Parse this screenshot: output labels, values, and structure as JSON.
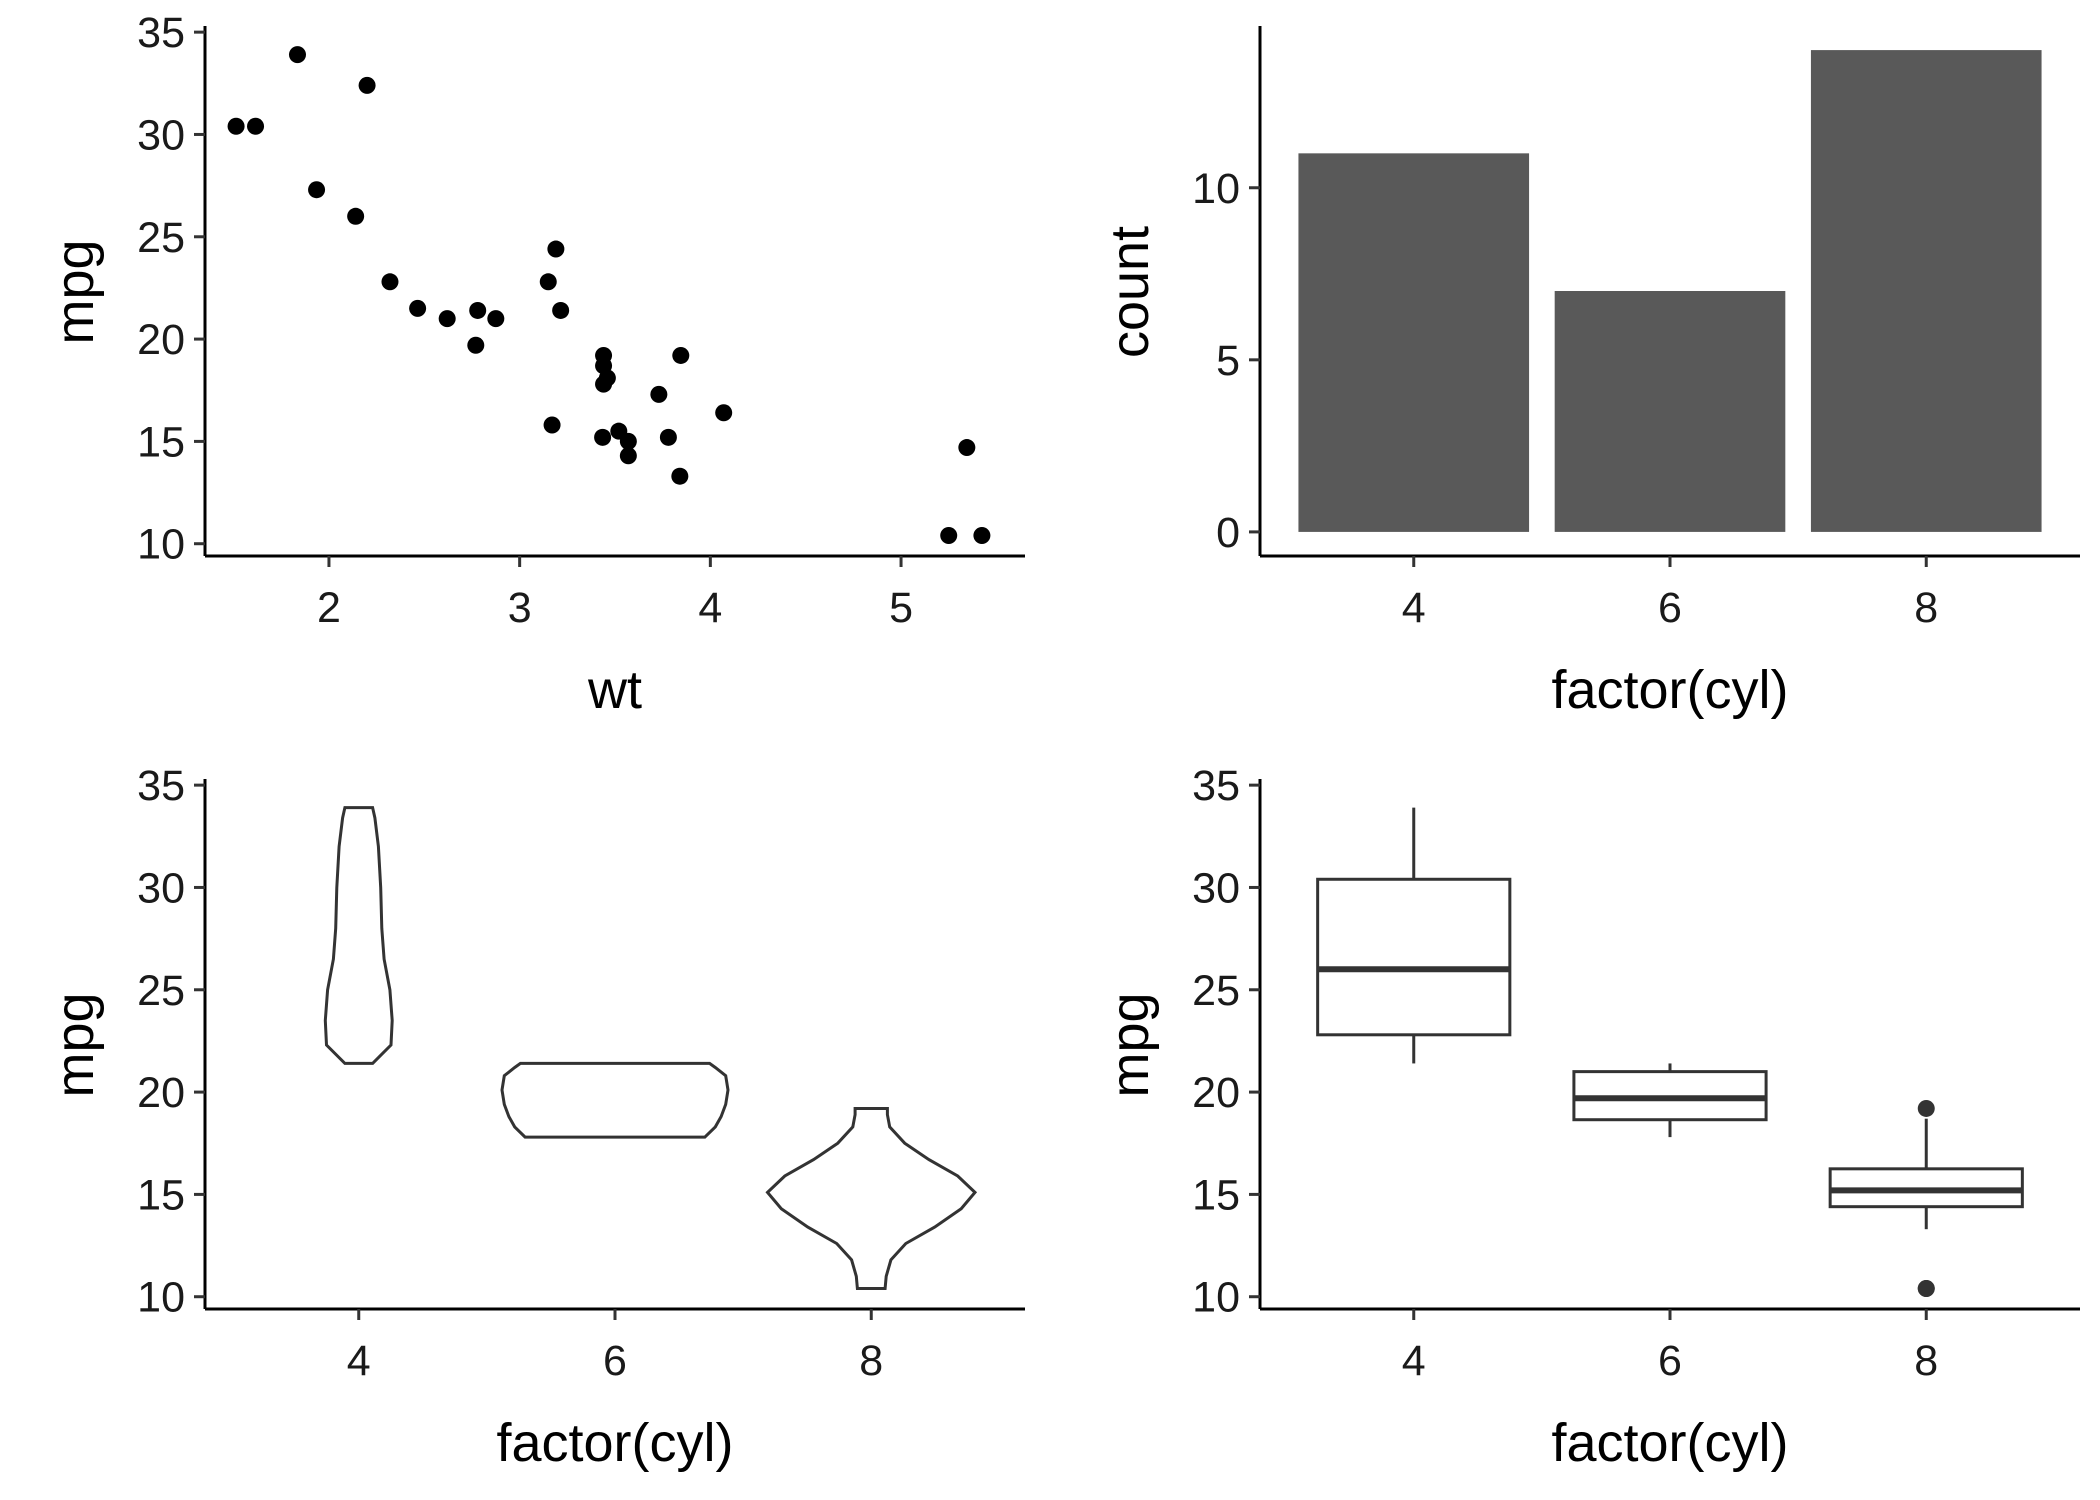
{
  "chart_data": [
    {
      "type": "scatter",
      "xlabel": "wt",
      "ylabel": "mpg",
      "xlim": [
        1.35,
        5.65
      ],
      "ylim": [
        9.4,
        35.3
      ],
      "xticks": [
        2,
        3,
        4,
        5
      ],
      "yticks": [
        10,
        15,
        20,
        25,
        30,
        35
      ],
      "grid": false,
      "points": [
        {
          "x": 2.62,
          "y": 21.0
        },
        {
          "x": 2.875,
          "y": 21.0
        },
        {
          "x": 2.32,
          "y": 22.8
        },
        {
          "x": 3.215,
          "y": 21.4
        },
        {
          "x": 3.44,
          "y": 18.7
        },
        {
          "x": 3.46,
          "y": 18.1
        },
        {
          "x": 3.57,
          "y": 14.3
        },
        {
          "x": 3.19,
          "y": 24.4
        },
        {
          "x": 3.15,
          "y": 22.8
        },
        {
          "x": 3.44,
          "y": 19.2
        },
        {
          "x": 3.44,
          "y": 17.8
        },
        {
          "x": 4.07,
          "y": 16.4
        },
        {
          "x": 3.73,
          "y": 17.3
        },
        {
          "x": 3.78,
          "y": 15.2
        },
        {
          "x": 5.25,
          "y": 10.4
        },
        {
          "x": 5.424,
          "y": 10.4
        },
        {
          "x": 5.345,
          "y": 14.7
        },
        {
          "x": 2.2,
          "y": 32.4
        },
        {
          "x": 1.615,
          "y": 30.4
        },
        {
          "x": 1.835,
          "y": 33.9
        },
        {
          "x": 2.465,
          "y": 21.5
        },
        {
          "x": 3.52,
          "y": 15.5
        },
        {
          "x": 3.435,
          "y": 15.2
        },
        {
          "x": 3.84,
          "y": 13.3
        },
        {
          "x": 3.845,
          "y": 19.2
        },
        {
          "x": 1.935,
          "y": 27.3
        },
        {
          "x": 2.14,
          "y": 26.0
        },
        {
          "x": 1.513,
          "y": 30.4
        },
        {
          "x": 3.17,
          "y": 15.8
        },
        {
          "x": 2.77,
          "y": 19.7
        },
        {
          "x": 3.57,
          "y": 15.0
        },
        {
          "x": 2.78,
          "y": 21.4
        }
      ]
    },
    {
      "type": "bar",
      "xlabel": "factor(cyl)",
      "ylabel": "count",
      "categories": [
        "4",
        "6",
        "8"
      ],
      "values": [
        11,
        7,
        14
      ],
      "ylim": [
        -0.7,
        14.7
      ],
      "yticks": [
        0,
        5,
        10
      ],
      "grid": false
    },
    {
      "type": "violin",
      "xlabel": "factor(cyl)",
      "ylabel": "mpg",
      "categories": [
        "4",
        "6",
        "8"
      ],
      "ylim": [
        9.4,
        35.3
      ],
      "yticks": [
        10,
        15,
        20,
        25,
        30,
        35
      ],
      "grid": false,
      "violins": [
        {
          "category": "4",
          "profile": [
            [
              21.4,
              0.12
            ],
            [
              22.3,
              0.28
            ],
            [
              23.5,
              0.29
            ],
            [
              25.0,
              0.27
            ],
            [
              26.5,
              0.22
            ],
            [
              28.0,
              0.2
            ],
            [
              30.0,
              0.19
            ],
            [
              32.0,
              0.17
            ],
            [
              33.4,
              0.14
            ],
            [
              33.9,
              0.12
            ]
          ]
        },
        {
          "category": "6",
          "profile": [
            [
              17.8,
              0.78
            ],
            [
              18.3,
              0.87
            ],
            [
              18.8,
              0.92
            ],
            [
              19.4,
              0.96
            ],
            [
              20.1,
              0.98
            ],
            [
              20.8,
              0.96
            ],
            [
              21.2,
              0.87
            ],
            [
              21.4,
              0.82
            ]
          ]
        },
        {
          "category": "8",
          "profile": [
            [
              10.4,
              0.12
            ],
            [
              11.0,
              0.13
            ],
            [
              11.8,
              0.17
            ],
            [
              12.6,
              0.3
            ],
            [
              13.4,
              0.55
            ],
            [
              14.3,
              0.78
            ],
            [
              15.1,
              0.9
            ],
            [
              15.9,
              0.75
            ],
            [
              16.7,
              0.5
            ],
            [
              17.5,
              0.29
            ],
            [
              18.3,
              0.16
            ],
            [
              18.9,
              0.14
            ],
            [
              19.2,
              0.14
            ]
          ]
        }
      ]
    },
    {
      "type": "box",
      "xlabel": "factor(cyl)",
      "ylabel": "mpg",
      "categories": [
        "4",
        "6",
        "8"
      ],
      "ylim": [
        9.4,
        35.3
      ],
      "yticks": [
        10,
        15,
        20,
        25,
        30,
        35
      ],
      "grid": false,
      "boxes": [
        {
          "category": "4",
          "min": 21.4,
          "q1": 22.8,
          "median": 26.0,
          "q3": 30.4,
          "max": 33.9,
          "outliers": []
        },
        {
          "category": "6",
          "min": 17.8,
          "q1": 18.65,
          "median": 19.7,
          "q3": 21.0,
          "max": 21.4,
          "outliers": []
        },
        {
          "category": "8",
          "min": 13.3,
          "q1": 14.4,
          "median": 15.2,
          "q3": 16.25,
          "max": 18.7,
          "outliers": [
            10.4,
            10.4,
            19.2
          ]
        }
      ]
    }
  ]
}
